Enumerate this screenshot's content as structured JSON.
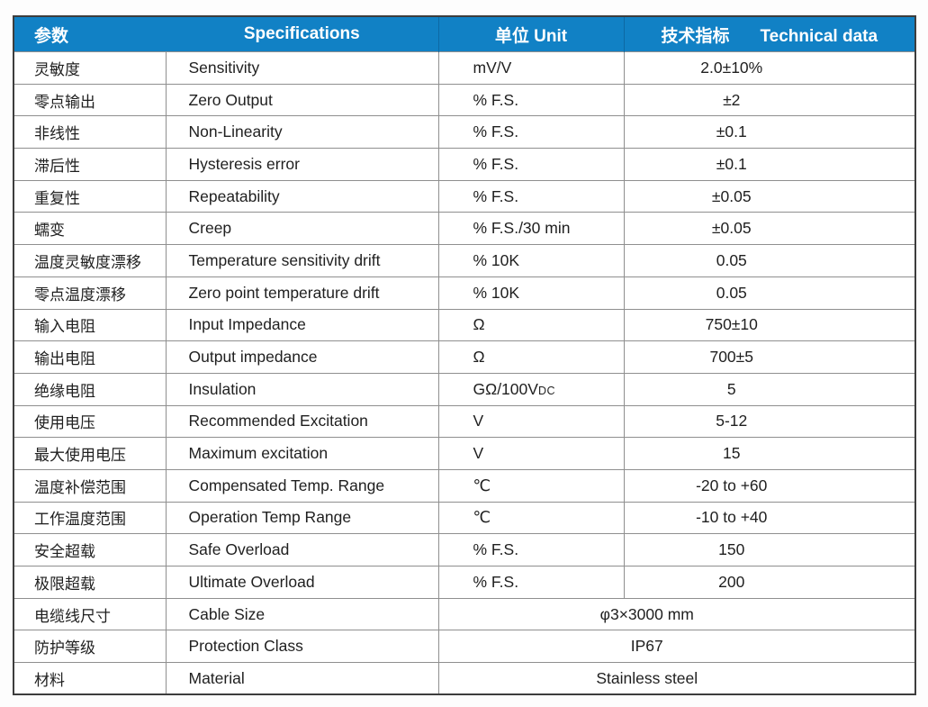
{
  "table": {
    "headers": {
      "param": "参数",
      "specifications": "Specifications",
      "unit": "单位 Unit",
      "tech_zh": "技术指标",
      "tech_en": "Technical data"
    },
    "rows": [
      {
        "zh": "灵敏度",
        "en": "Sensitivity",
        "unit": "mV/V",
        "value": "2.0±10%"
      },
      {
        "zh": "零点输出",
        "en": "Zero Output",
        "unit": "% F.S.",
        "value": "±2"
      },
      {
        "zh": "非线性",
        "en": "Non-Linearity",
        "unit": "% F.S.",
        "value": "±0.1"
      },
      {
        "zh": "滞后性",
        "en": "Hysteresis error",
        "unit": "% F.S.",
        "value": "±0.1"
      },
      {
        "zh": "重复性",
        "en": "Repeatability",
        "unit": "% F.S.",
        "value": "±0.05"
      },
      {
        "zh": "蠕变",
        "en": "Creep",
        "unit": "% F.S./30 min",
        "value": "±0.05"
      },
      {
        "zh": "温度灵敏度漂移",
        "en": "Temperature sensitivity drift",
        "unit": "% 10K",
        "value": "0.05"
      },
      {
        "zh": "零点温度漂移",
        "en": "Zero point temperature drift",
        "unit": "% 10K",
        "value": "0.05"
      },
      {
        "zh": "输入电阻",
        "en": "Input Impedance",
        "unit": "Ω",
        "value": "750±10"
      },
      {
        "zh": "输出电阻",
        "en": "Output impedance",
        "unit": "Ω",
        "value": "700±5"
      },
      {
        "zh": "绝缘电阻",
        "en": "Insulation",
        "unit": "GΩ/100V",
        "unit_sub": "DC",
        "value": "5"
      },
      {
        "zh": "使用电压",
        "en": "Recommended Excitation",
        "unit": "V",
        "value": "5-12"
      },
      {
        "zh": "最大使用电压",
        "en": "Maximum excitation",
        "unit": "V",
        "value": "15"
      },
      {
        "zh": "温度补偿范围",
        "en": "Compensated Temp. Range",
        "unit": "℃",
        "value": "-20 to +60"
      },
      {
        "zh": "工作温度范围",
        "en": "Operation Temp Range",
        "unit": "℃",
        "value": "-10 to +40"
      },
      {
        "zh": "安全超载",
        "en": "Safe Overload",
        "unit": "% F.S.",
        "value": "150"
      },
      {
        "zh": "极限超载",
        "en": "Ultimate Overload",
        "unit": "% F.S.",
        "value": "200"
      },
      {
        "zh": "电缆线尺寸",
        "en": "Cable Size",
        "merged": true,
        "value": "φ3×3000 mm"
      },
      {
        "zh": "防护等级",
        "en": "Protection Class",
        "merged": true,
        "value": "IP67"
      },
      {
        "zh": "材料",
        "en": "Material",
        "merged": true,
        "value": "Stainless steel"
      }
    ],
    "colors": {
      "header_bg": "#1181c5",
      "header_text": "#ffffff",
      "grid_line": "#8f8f8f",
      "outer_border": "#3d3d3d",
      "body_text": "#1f1f1f"
    }
  }
}
